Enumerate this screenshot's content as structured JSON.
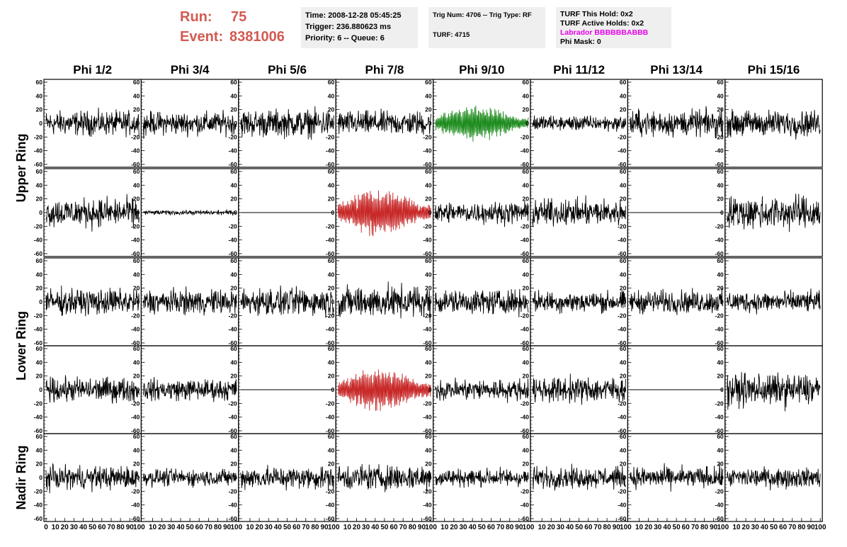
{
  "header": {
    "run_label": "Run:",
    "run_value": "75",
    "event_label": "Event:",
    "event_value": "8381006",
    "time": "Time: 2008-12-28 05:45:25",
    "trigger": "Trigger: 236.880623 ms",
    "priority": "Priority: 6 -- Queue: 6",
    "trig_num": "Trig Num: 4706 -- Trig Type: RF",
    "turf": "TURF: 4715",
    "turf_hold": "TURF This Hold: 0x2",
    "turf_active": "TURF Active Holds: 0x2",
    "labrador": "Labrador BBBBBBABBB",
    "phi_mask": "Phi Mask: 0"
  },
  "colors": {
    "header_red": "#d25a52",
    "labrador_magenta": "#e600e6",
    "trace_default": "#000000",
    "trace_green": "#1e8c1e",
    "trace_red": "#c82828",
    "info_bg": "#efefef"
  },
  "chart_data": {
    "type": "line",
    "columns": [
      "Phi 1/2",
      "Phi 3/4",
      "Phi 5/6",
      "Phi 7/8",
      "Phi 9/10",
      "Phi 11/12",
      "Phi 13/14",
      "Phi 15/16"
    ],
    "ring_labels": [
      "Upper Ring",
      "Lower Ring",
      "Nadir Ring"
    ],
    "rows": 5,
    "ring_row_spans": [
      [
        0,
        1
      ],
      [
        2,
        3
      ],
      [
        4,
        4
      ]
    ],
    "xlim": [
      0,
      100
    ],
    "ylim": [
      -60,
      60
    ],
    "x_tick_labels": [
      "0",
      "10",
      "20",
      "30",
      "40",
      "50",
      "60",
      "70",
      "80",
      "90",
      "100"
    ],
    "y_tick_labels": [
      "60",
      "40",
      "20",
      "0",
      "-20",
      "-40",
      "-60"
    ],
    "samples_per_trace": 260,
    "grid": false,
    "legend": "none",
    "traces": [
      [
        {
          "amp": 16,
          "color": "black",
          "env": "flat"
        },
        {
          "amp": 15,
          "color": "black",
          "env": "flat"
        },
        {
          "amp": 18,
          "color": "black",
          "env": "flat"
        },
        {
          "amp": 16,
          "color": "black",
          "env": "flat"
        },
        {
          "amp": 26,
          "color": "green",
          "env": "packet"
        },
        {
          "amp": 10,
          "color": "black",
          "env": "flat"
        },
        {
          "amp": 17,
          "color": "black",
          "env": "flat"
        },
        {
          "amp": 17,
          "color": "black",
          "env": "flat"
        }
      ],
      [
        {
          "amp": 19,
          "color": "black",
          "env": "flat"
        },
        {
          "amp": 3,
          "color": "black",
          "env": "flat"
        },
        {
          "amp": 0,
          "color": "black",
          "env": "dead"
        },
        {
          "amp": 34,
          "color": "red",
          "env": "packet"
        },
        {
          "amp": 14,
          "color": "black",
          "env": "flat"
        },
        {
          "amp": 17,
          "color": "black",
          "env": "flat"
        },
        {
          "amp": 0,
          "color": "black",
          "env": "dead"
        },
        {
          "amp": 22,
          "color": "black",
          "env": "flat"
        }
      ],
      [
        {
          "amp": 17,
          "color": "black",
          "env": "flat"
        },
        {
          "amp": 16,
          "color": "black",
          "env": "flat"
        },
        {
          "amp": 18,
          "color": "black",
          "env": "flat"
        },
        {
          "amp": 21,
          "color": "black",
          "env": "flat"
        },
        {
          "amp": 16,
          "color": "black",
          "env": "flat"
        },
        {
          "amp": 14,
          "color": "black",
          "env": "flat"
        },
        {
          "amp": 15,
          "color": "black",
          "env": "flat"
        },
        {
          "amp": 14,
          "color": "black",
          "env": "flat"
        }
      ],
      [
        {
          "amp": 16,
          "color": "black",
          "env": "flat"
        },
        {
          "amp": 14,
          "color": "black",
          "env": "flat"
        },
        {
          "amp": 0,
          "color": "black",
          "env": "dead"
        },
        {
          "amp": 30,
          "color": "red",
          "env": "packet"
        },
        {
          "amp": 14,
          "color": "black",
          "env": "flat"
        },
        {
          "amp": 17,
          "color": "black",
          "env": "flat"
        },
        {
          "amp": 0,
          "color": "black",
          "env": "dead"
        },
        {
          "amp": 21,
          "color": "black",
          "env": "flat"
        }
      ],
      [
        {
          "amp": 15,
          "color": "black",
          "env": "flat"
        },
        {
          "amp": 11,
          "color": "black",
          "env": "flat"
        },
        {
          "amp": 15,
          "color": "black",
          "env": "flat"
        },
        {
          "amp": 17,
          "color": "black",
          "env": "flat"
        },
        {
          "amp": 12,
          "color": "black",
          "env": "flat"
        },
        {
          "amp": 14,
          "color": "black",
          "env": "flat"
        },
        {
          "amp": 14,
          "color": "black",
          "env": "flat"
        },
        {
          "amp": 13,
          "color": "black",
          "env": "flat"
        }
      ]
    ]
  }
}
